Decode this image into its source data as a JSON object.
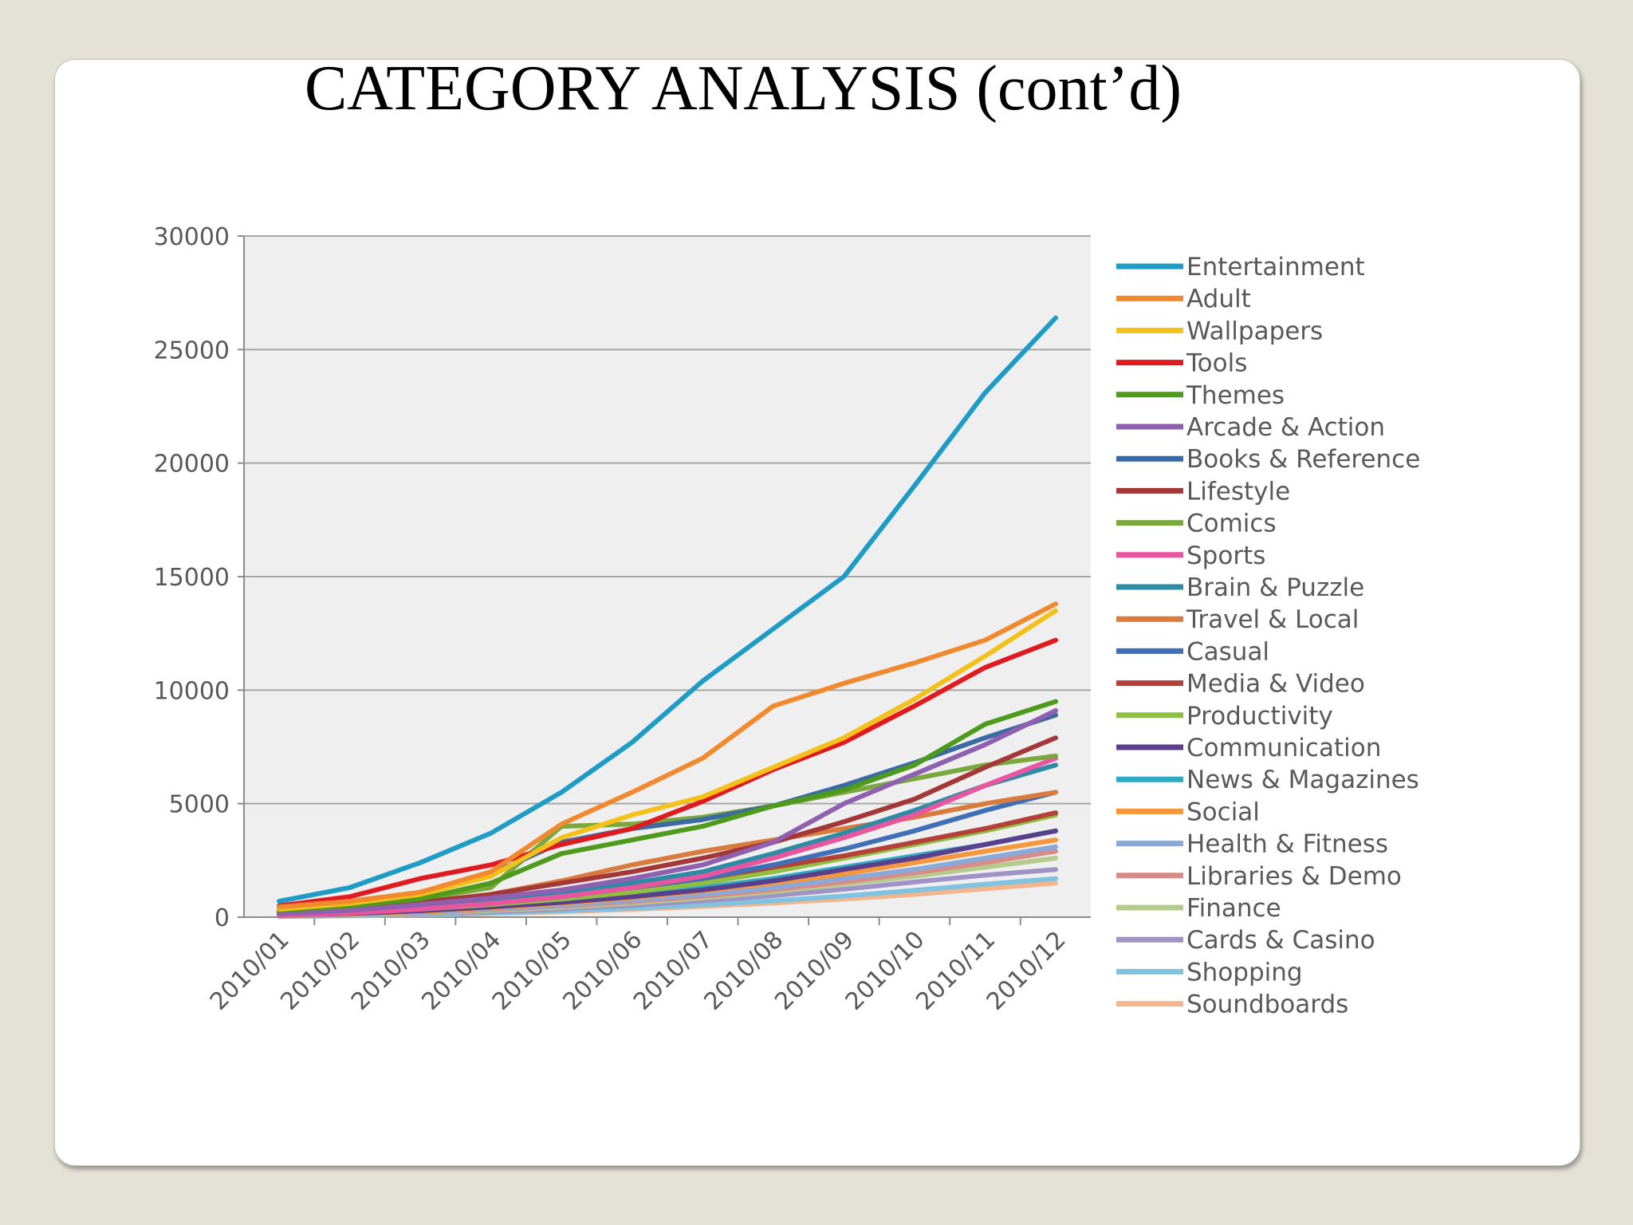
{
  "slide": {
    "title": "CATEGORY ANALYSIS (cont’d)"
  },
  "chart_data": {
    "type": "line",
    "title": "",
    "xlabel": "",
    "ylabel": "",
    "x": [
      "2010/01",
      "2010/02",
      "2010/03",
      "2010/04",
      "2010/05",
      "2010/06",
      "2010/07",
      "2010/08",
      "2010/09",
      "2010/10",
      "2010/11",
      "2010/12"
    ],
    "ylim": [
      0,
      30000
    ],
    "yticks": [
      0,
      5000,
      10000,
      15000,
      20000,
      25000,
      30000
    ],
    "grid": true,
    "legend_position": "right",
    "plot_background": "#efefef",
    "series": [
      {
        "name": "Entertainment",
        "color": "#1e9cc6",
        "values": [
          700,
          1300,
          2400,
          3700,
          5500,
          7700,
          10400,
          12700,
          15000,
          19000,
          23100,
          26400
        ]
      },
      {
        "name": "Adult",
        "color": "#f18a2e",
        "values": [
          450,
          700,
          1100,
          2000,
          4100,
          5500,
          7000,
          9300,
          10300,
          11200,
          12200,
          13800
        ]
      },
      {
        "name": "Wallpapers",
        "color": "#f3c11a",
        "values": [
          350,
          600,
          1000,
          1800,
          3500,
          4500,
          5300,
          6600,
          7900,
          9600,
          11500,
          13500
        ]
      },
      {
        "name": "Tools",
        "color": "#e01a1e",
        "values": [
          500,
          900,
          1700,
          2300,
          3200,
          3900,
          5100,
          6500,
          7700,
          9300,
          11000,
          12200
        ]
      },
      {
        "name": "Themes",
        "color": "#4e9a1a",
        "values": [
          300,
          500,
          800,
          1500,
          2800,
          3400,
          4000,
          4900,
          5600,
          6700,
          8500,
          9500
        ]
      },
      {
        "name": "Arcade & Action",
        "color": "#8f5fb0",
        "values": [
          150,
          300,
          550,
          850,
          1200,
          1700,
          2300,
          3300,
          5000,
          6300,
          7600,
          9100
        ]
      },
      {
        "name": "Books & Reference",
        "color": "#3c6aa3",
        "values": [
          300,
          500,
          1100,
          1900,
          3300,
          3900,
          4300,
          4900,
          5800,
          6800,
          7900,
          8900
        ]
      },
      {
        "name": "Lifestyle",
        "color": "#a43737",
        "values": [
          200,
          400,
          650,
          1000,
          1500,
          2000,
          2600,
          3300,
          4200,
          5200,
          6600,
          7900
        ]
      },
      {
        "name": "Comics",
        "color": "#7aa83c",
        "values": [
          250,
          500,
          800,
          1300,
          4000,
          4100,
          4400,
          4900,
          5500,
          6100,
          6700,
          7100
        ]
      },
      {
        "name": "Sports",
        "color": "#e9559f",
        "values": [
          80,
          180,
          350,
          600,
          900,
          1300,
          1800,
          2600,
          3500,
          4500,
          5800,
          7000
        ]
      },
      {
        "name": "Brain & Puzzle",
        "color": "#2d8ba6",
        "values": [
          120,
          260,
          450,
          700,
          1050,
          1500,
          2000,
          2800,
          3700,
          4700,
          5800,
          6700
        ]
      },
      {
        "name": "Travel & Local",
        "color": "#d97b3c",
        "values": [
          180,
          380,
          650,
          1000,
          1600,
          2300,
          2900,
          3400,
          3900,
          4400,
          5000,
          5500
        ]
      },
      {
        "name": "Casual",
        "color": "#3f6fb6",
        "values": [
          100,
          220,
          380,
          600,
          900,
          1300,
          1700,
          2300,
          3000,
          3800,
          4700,
          5500
        ]
      },
      {
        "name": "Media & Video",
        "color": "#b5403a",
        "values": [
          120,
          260,
          420,
          650,
          950,
          1300,
          1700,
          2200,
          2700,
          3300,
          3900,
          4600
        ]
      },
      {
        "name": "Productivity",
        "color": "#8ebf3f",
        "values": [
          100,
          200,
          350,
          550,
          800,
          1100,
          1500,
          2000,
          2600,
          3200,
          3800,
          4500
        ]
      },
      {
        "name": "Communication",
        "color": "#5a3f8c",
        "values": [
          80,
          160,
          280,
          450,
          650,
          900,
          1200,
          1600,
          2100,
          2600,
          3200,
          3800
        ]
      },
      {
        "name": "News & Magazines",
        "color": "#2fa9c2",
        "values": [
          100,
          200,
          340,
          520,
          750,
          1000,
          1300,
          1700,
          2200,
          2700,
          3200,
          3800
        ]
      },
      {
        "name": "Social",
        "color": "#f7963c",
        "values": [
          70,
          140,
          250,
          400,
          600,
          850,
          1150,
          1500,
          1900,
          2400,
          2900,
          3400
        ]
      },
      {
        "name": "Health & Fitness",
        "color": "#8aa8d8",
        "values": [
          60,
          120,
          220,
          350,
          520,
          740,
          1000,
          1300,
          1700,
          2100,
          2600,
          3100
        ]
      },
      {
        "name": "Libraries & Demo",
        "color": "#d98b88",
        "values": [
          60,
          120,
          210,
          330,
          480,
          680,
          920,
          1200,
          1550,
          1950,
          2400,
          2900
        ]
      },
      {
        "name": "Finance",
        "color": "#b5cb8c",
        "values": [
          50,
          100,
          180,
          290,
          430,
          620,
          850,
          1120,
          1450,
          1800,
          2200,
          2600
        ]
      },
      {
        "name": "Cards & Casino",
        "color": "#9f92c5",
        "values": [
          40,
          80,
          150,
          240,
          360,
          520,
          720,
          950,
          1230,
          1550,
          1850,
          2100
        ]
      },
      {
        "name": "Shopping",
        "color": "#7fc3e1",
        "values": [
          30,
          60,
          110,
          180,
          270,
          390,
          540,
          720,
          930,
          1180,
          1450,
          1700
        ]
      },
      {
        "name": "Soundboards",
        "color": "#f5b58c",
        "values": [
          30,
          60,
          100,
          160,
          240,
          340,
          470,
          620,
          800,
          1000,
          1250,
          1500
        ]
      }
    ]
  }
}
